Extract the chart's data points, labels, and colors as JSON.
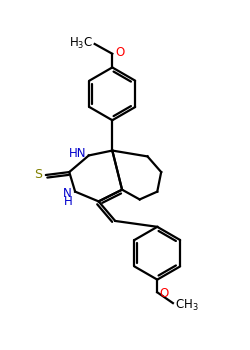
{
  "bg_color": "#ffffff",
  "atom_colors": {
    "C": "#000000",
    "N": "#0000cc",
    "O": "#ff0000",
    "S": "#808000"
  },
  "figsize": [
    2.5,
    3.5
  ],
  "dpi": 100,
  "lw": 1.6
}
